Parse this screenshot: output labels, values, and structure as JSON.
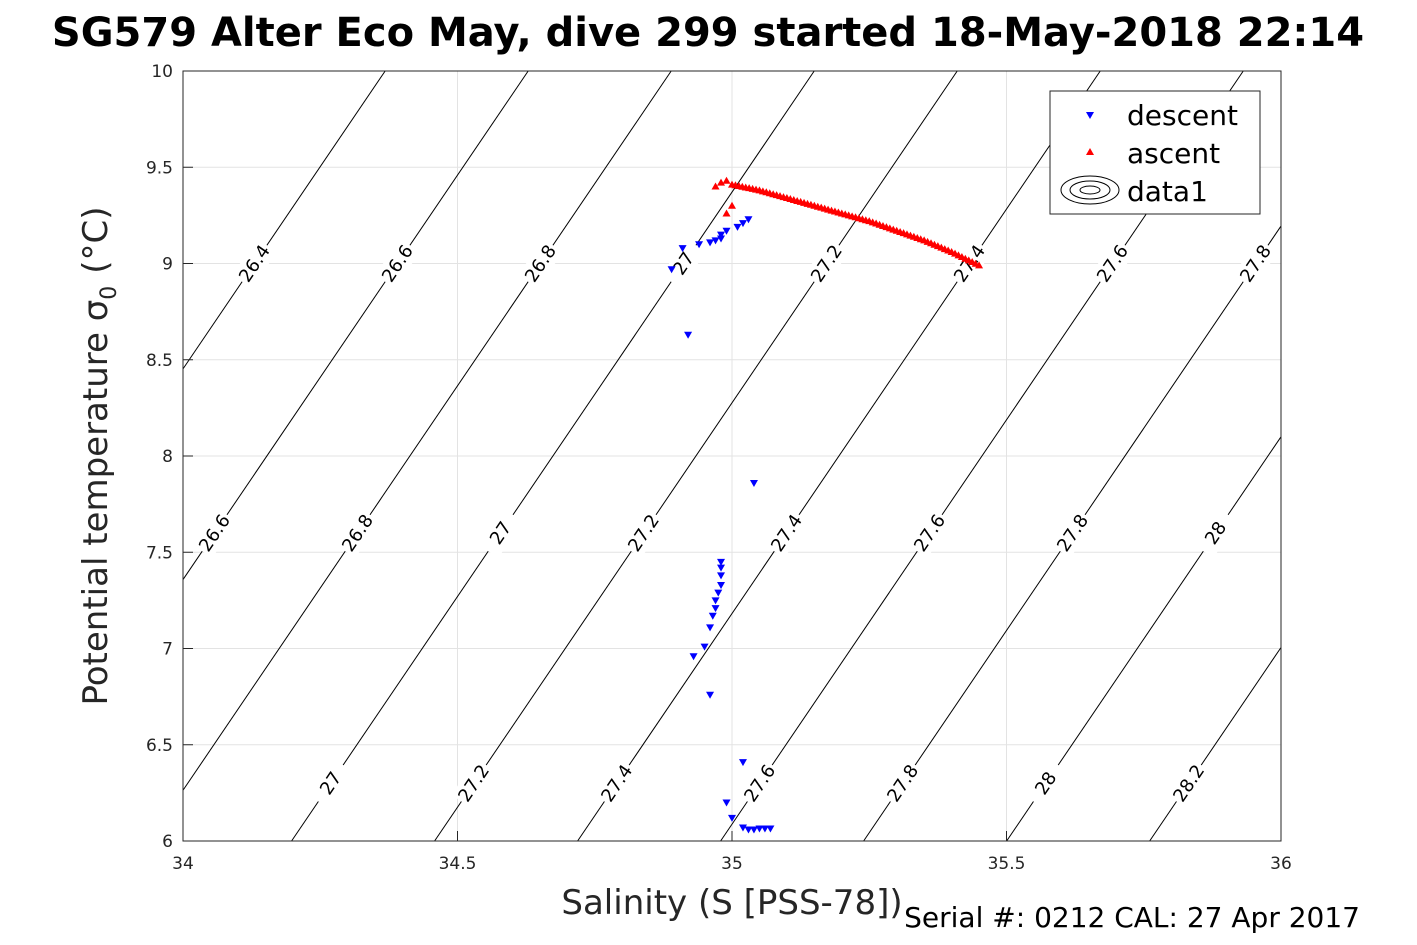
{
  "title": "SG579 Alter Eco May, dive 299 started 18-May-2018 22:14",
  "footer": "Serial #: 0212  CAL: 27 Apr 2017",
  "chart_data": {
    "type": "scatter",
    "xlabel": "Salinity (S [PSS-78])",
    "ylabel": "Potential temperature σ",
    "ylabel_subscript": "0",
    "ylabel_unit": "(°C)",
    "xlim": [
      34,
      36
    ],
    "ylim": [
      6,
      10
    ],
    "x_ticks": [
      "34",
      "34.5",
      "35",
      "35.5",
      "36"
    ],
    "y_ticks": [
      "6",
      "6.5",
      "7",
      "7.5",
      "8",
      "8.5",
      "9",
      "9.5",
      "10"
    ],
    "grid": true,
    "legend_position": "top-right",
    "legend": [
      "descent",
      "ascent",
      "data1"
    ],
    "series": [
      {
        "name": "descent",
        "marker": "triangle-down",
        "color": "#0000ff",
        "points": [
          [
            34.89,
            8.97
          ],
          [
            34.91,
            9.08
          ],
          [
            34.92,
            8.63
          ],
          [
            34.94,
            9.1
          ],
          [
            34.96,
            9.11
          ],
          [
            34.97,
            9.12
          ],
          [
            34.98,
            9.13
          ],
          [
            34.98,
            9.15
          ],
          [
            34.99,
            9.17
          ],
          [
            35.01,
            9.19
          ],
          [
            35.02,
            9.21
          ],
          [
            35.03,
            9.23
          ],
          [
            35.04,
            7.86
          ],
          [
            34.93,
            6.96
          ],
          [
            34.95,
            7.01
          ],
          [
            34.96,
            7.11
          ],
          [
            34.965,
            7.17
          ],
          [
            34.97,
            7.21
          ],
          [
            34.97,
            7.25
          ],
          [
            34.975,
            7.29
          ],
          [
            34.98,
            7.33
          ],
          [
            34.98,
            7.38
          ],
          [
            34.98,
            7.42
          ],
          [
            34.98,
            7.45
          ],
          [
            34.96,
            6.76
          ],
          [
            35.02,
            6.41
          ],
          [
            34.99,
            6.2
          ],
          [
            35.0,
            6.12
          ],
          [
            35.02,
            6.07
          ],
          [
            35.03,
            6.06
          ],
          [
            35.04,
            6.06
          ],
          [
            35.05,
            6.065
          ],
          [
            35.06,
            6.065
          ],
          [
            35.07,
            6.065
          ]
        ]
      },
      {
        "name": "ascent",
        "marker": "triangle-up",
        "color": "#ff0000",
        "points": [
          [
            34.98,
            9.42
          ],
          [
            34.99,
            9.43
          ],
          [
            35.0,
            9.3
          ],
          [
            34.99,
            9.26
          ],
          [
            34.97,
            9.4
          ],
          [
            35.0,
            9.41
          ],
          [
            35.05,
            9.38
          ],
          [
            35.1,
            9.34
          ],
          [
            35.15,
            9.3
          ],
          [
            35.2,
            9.26
          ],
          [
            35.25,
            9.22
          ],
          [
            35.3,
            9.17
          ],
          [
            35.35,
            9.12
          ],
          [
            35.4,
            9.06
          ],
          [
            35.45,
            8.99
          ]
        ]
      }
    ],
    "isopycnals": [
      {
        "sigma": 26.4,
        "label": "26.4"
      },
      {
        "sigma": 26.6,
        "label": "26.6"
      },
      {
        "sigma": 26.8,
        "label": "26.8"
      },
      {
        "sigma": 27.0,
        "label": "27"
      },
      {
        "sigma": 27.2,
        "label": "27.2"
      },
      {
        "sigma": 27.4,
        "label": "27.4"
      },
      {
        "sigma": 27.6,
        "label": "27.6"
      },
      {
        "sigma": 27.8,
        "label": "27.8"
      },
      {
        "sigma": 28.0,
        "label": "28"
      },
      {
        "sigma": 28.2,
        "label": "28.2"
      }
    ],
    "isopycnal_labels": [
      {
        "sigma": 26.4,
        "t": 9.0
      },
      {
        "sigma": 26.6,
        "t": 9.0
      },
      {
        "sigma": 26.8,
        "t": 9.0
      },
      {
        "sigma": 27.0,
        "t": 9.0
      },
      {
        "sigma": 27.2,
        "t": 9.0
      },
      {
        "sigma": 27.4,
        "t": 9.0
      },
      {
        "sigma": 27.6,
        "t": 9.0
      },
      {
        "sigma": 27.8,
        "t": 9.0
      },
      {
        "sigma": 26.6,
        "t": 7.6
      },
      {
        "sigma": 26.8,
        "t": 7.6
      },
      {
        "sigma": 27.0,
        "t": 7.6
      },
      {
        "sigma": 27.2,
        "t": 7.6
      },
      {
        "sigma": 27.4,
        "t": 7.6
      },
      {
        "sigma": 27.6,
        "t": 7.6
      },
      {
        "sigma": 27.8,
        "t": 7.6
      },
      {
        "sigma": 28.0,
        "t": 7.6
      },
      {
        "sigma": 26.8,
        "t": 6.3
      },
      {
        "sigma": 27.0,
        "t": 6.3
      },
      {
        "sigma": 27.2,
        "t": 6.3
      },
      {
        "sigma": 27.4,
        "t": 6.3
      },
      {
        "sigma": 27.6,
        "t": 6.3
      },
      {
        "sigma": 27.8,
        "t": 6.3
      },
      {
        "sigma": 28.0,
        "t": 6.3
      },
      {
        "sigma": 28.2,
        "t": 6.3
      }
    ]
  }
}
